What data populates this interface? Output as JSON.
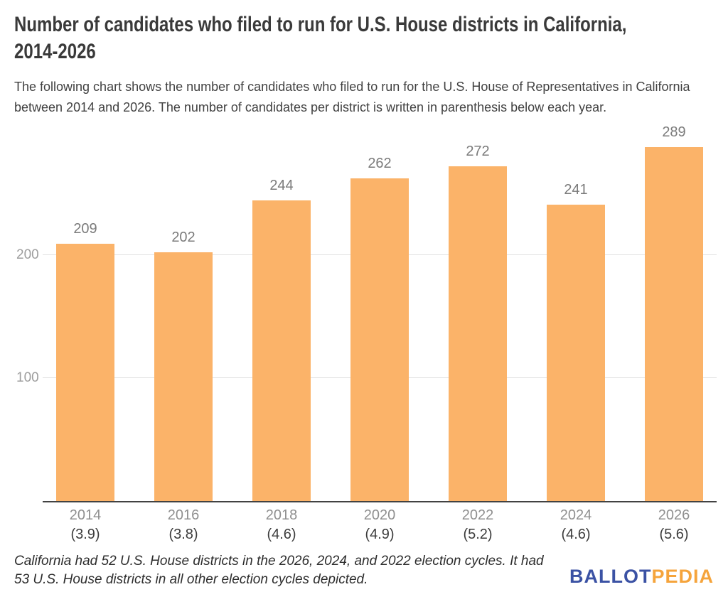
{
  "header": {
    "title_line1": "Number of candidates who filed to run for U.S. House districts in California,",
    "title_line2": "2014-2026",
    "subtitle": "The following chart shows the number of candidates who filed to run for the U.S. House of Representatives in California between 2014 and 2026. The number of candidates per district is written in parenthesis below each year."
  },
  "footer": {
    "note_line1": "California had 52 U.S. House districts in the 2026, 2024, and 2022 election cycles. It had",
    "note_line2": "53 U.S. House districts in all other election cycles depicted.",
    "logo": {
      "text_primary": "BALLOT",
      "text_secondary": "PEDIA",
      "color_primary": "#3B52A4",
      "color_secondary": "#F5A43C"
    }
  },
  "chart_data": {
    "type": "bar",
    "title": "Number of candidates who filed to run for U.S. House districts in California, 2014-2026",
    "categories": [
      "2014",
      "2016",
      "2018",
      "2020",
      "2022",
      "2024",
      "2026"
    ],
    "values": [
      209,
      202,
      244,
      262,
      272,
      241,
      289
    ],
    "candidates_per_district": [
      3.9,
      3.8,
      4.6,
      4.9,
      5.2,
      4.6,
      5.6
    ],
    "xlabel": "",
    "ylabel": "",
    "yticks": [
      100,
      200
    ],
    "ylim": [
      0,
      306
    ],
    "grid": "horizontal",
    "legend": "none",
    "bar_color": "#FBB369",
    "value_label_color": "#7b7b7b"
  }
}
